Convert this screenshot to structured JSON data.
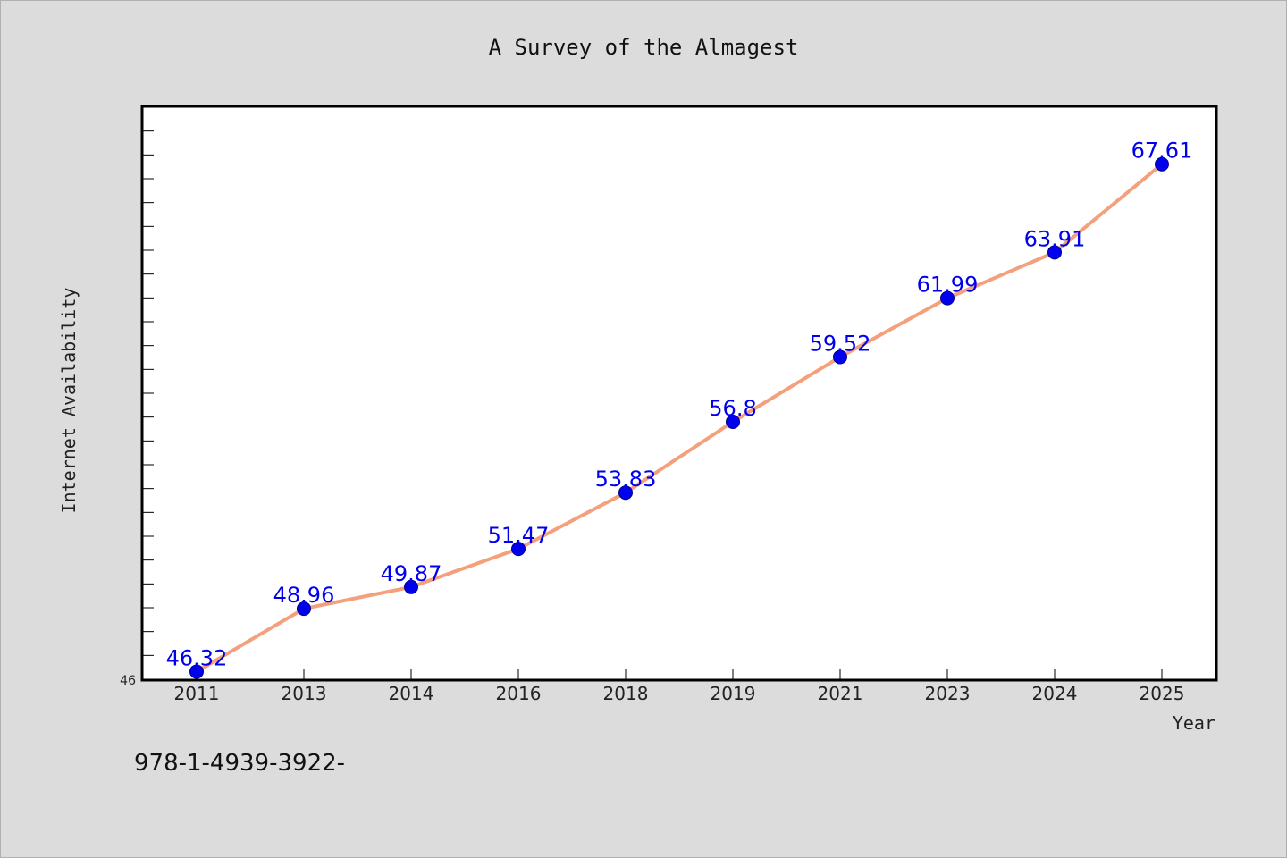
{
  "chart_data": {
    "type": "line",
    "title": "A Survey of the Almagest",
    "xlabel": "Year",
    "ylabel": "Internet Availability",
    "categories": [
      "2011",
      "2013",
      "2014",
      "2016",
      "2018",
      "2019",
      "2021",
      "2023",
      "2024",
      "2025"
    ],
    "series": [
      {
        "values": [
          46.32,
          48.96,
          49.87,
          51.47,
          53.83,
          56.8,
          59.52,
          61.99,
          63.91,
          67.61
        ],
        "data_labels": [
          "46.32",
          "48.96",
          "49.87",
          "51.47",
          "53.83",
          "56.8",
          "59.52",
          "61.99",
          "63.91",
          "67.61"
        ]
      }
    ],
    "ylim": [
      46,
      70
    ],
    "y_tick_labels": [
      "46"
    ],
    "grid": false,
    "legend": "none",
    "colors": {
      "line": "#f4a07c",
      "marker": "#0000ee",
      "label": "#0000ee",
      "background": "#dcdcdc",
      "plot_background": "#ffffff"
    }
  },
  "footer_text": "978-1-4939-3922-"
}
